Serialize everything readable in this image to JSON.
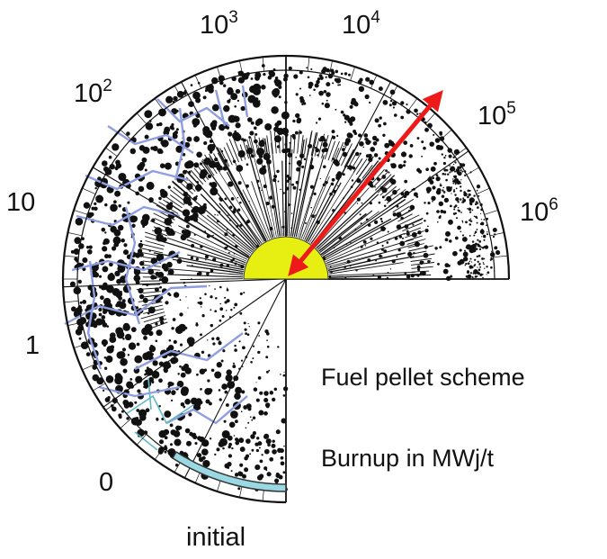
{
  "stage_labels": [
    {
      "id": "initial",
      "base": "initial",
      "exp": ""
    },
    {
      "id": "0",
      "base": "0",
      "exp": ""
    },
    {
      "id": "1",
      "base": "1",
      "exp": ""
    },
    {
      "id": "10",
      "base": "10",
      "exp": ""
    },
    {
      "id": "1e2",
      "base": "10",
      "exp": "2"
    },
    {
      "id": "1e3",
      "base": "10",
      "exp": "3"
    },
    {
      "id": "1e4",
      "base": "10",
      "exp": "4"
    },
    {
      "id": "1e5",
      "base": "10",
      "exp": "5"
    },
    {
      "id": "1e6",
      "base": "10",
      "exp": "6"
    }
  ],
  "captions": {
    "scheme": "Fuel pellet scheme",
    "burnup": "Burnup in MWj/t"
  },
  "colors": {
    "outline": "#111111",
    "crack_blue": "#8f9ee0",
    "cladding_cyan": "#9ad9e3",
    "center_yellow": "#e6ee12",
    "arrow_red": "#ee1a1a"
  }
}
